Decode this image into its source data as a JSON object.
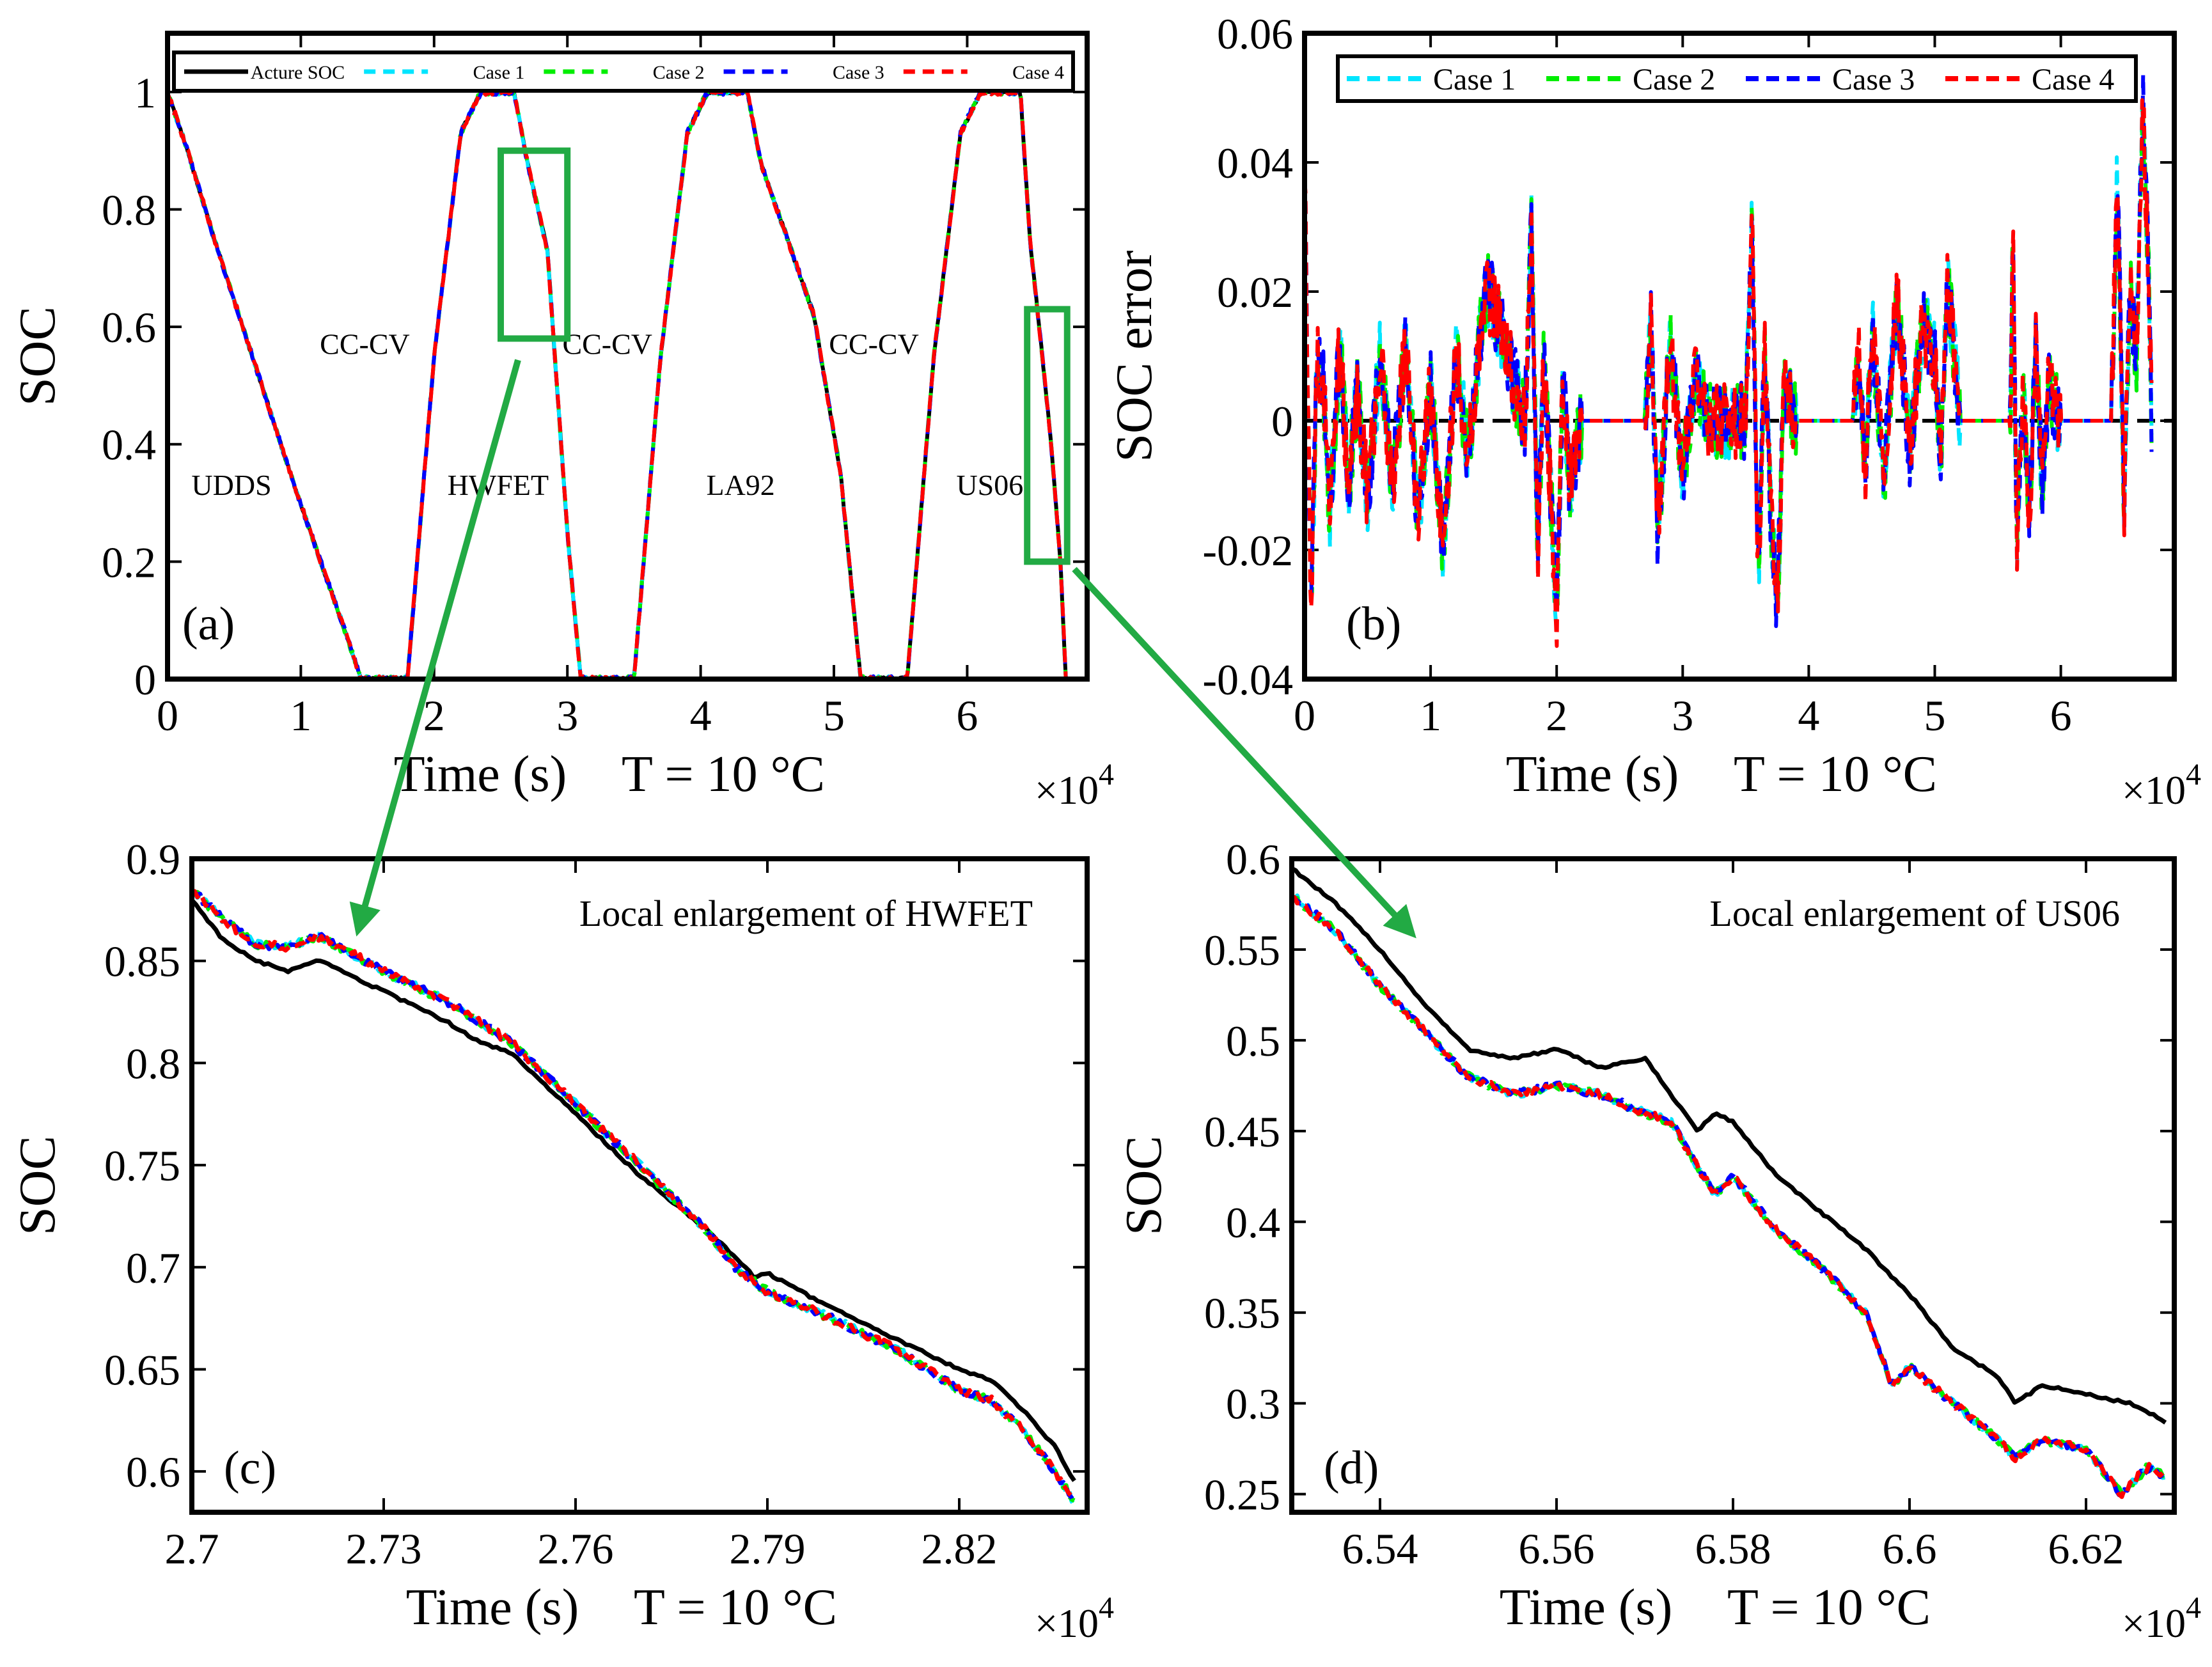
{
  "figure": {
    "x_multiplier": {
      "base": "×10",
      "exp": "4"
    },
    "temperature_text": "T = 10 °C",
    "time_label": "Time (s)"
  },
  "colors": {
    "actual": "#000000",
    "case1": "#00e5ff",
    "case2": "#00ee00",
    "case3": "#0000ff",
    "case4": "#ff0000",
    "highlight": "#22aa44"
  },
  "chart_data": [
    {
      "id": "a",
      "type": "line",
      "panel_label": "(a)",
      "xlabel": "Time (s)",
      "temperature": "T = 10 °C",
      "ylabel": "SOC",
      "xlim": [
        0,
        6.9
      ],
      "ylim": [
        0,
        1.1
      ],
      "x_scale": "×10^4",
      "xticks": [
        0,
        1,
        2,
        3,
        4,
        5,
        6
      ],
      "yticks": [
        0,
        0.2,
        0.4,
        0.6,
        0.8,
        1
      ],
      "ytick_labels": [
        "0",
        "0.2",
        "0.4",
        "0.6",
        "0.8",
        "1"
      ],
      "legend": [
        "Acture SOC",
        "Case 1",
        "Case 2",
        "Case 3",
        "Case 4"
      ],
      "legend_position": "top",
      "annotations": [
        {
          "text": "UDDS",
          "x": 0.48,
          "y": 0.33
        },
        {
          "text": "CC-CV",
          "x": 1.48,
          "y": 0.57
        },
        {
          "text": "HWFET",
          "x": 2.48,
          "y": 0.33
        },
        {
          "text": "CC-CV",
          "x": 3.3,
          "y": 0.57
        },
        {
          "text": "LA92",
          "x": 4.3,
          "y": 0.33
        },
        {
          "text": "CC-CV",
          "x": 5.3,
          "y": 0.57
        },
        {
          "text": "US06",
          "x": 6.17,
          "y": 0.33
        }
      ],
      "zoom_boxes": [
        {
          "x0": 2.5,
          "x1": 3.0,
          "y0": 0.58,
          "y1": 0.9
        },
        {
          "x0": 6.45,
          "x1": 6.75,
          "y0": 0.2,
          "y1": 0.63
        }
      ],
      "series": [
        {
          "name": "Acture SOC",
          "x": [
            0,
            0.15,
            0.35,
            0.55,
            0.75,
            0.95,
            1.15,
            1.35,
            1.45,
            1.8,
            2.0,
            2.2,
            2.35,
            2.6,
            2.7,
            2.85,
            3.0,
            3.1,
            3.5,
            3.7,
            3.9,
            4.05,
            4.35,
            4.45,
            4.65,
            4.85,
            5.05,
            5.2,
            5.55,
            5.75,
            5.95,
            6.1,
            6.4,
            6.47,
            6.55,
            6.63,
            6.7,
            6.74
          ],
          "y": [
            1,
            0.9,
            0.75,
            0.61,
            0.47,
            0.33,
            0.2,
            0.07,
            0,
            0,
            0.55,
            0.93,
            1,
            1,
            0.88,
            0.73,
            0.25,
            0,
            0,
            0.55,
            0.93,
            1,
            1,
            0.88,
            0.75,
            0.62,
            0.35,
            0,
            0,
            0.55,
            0.93,
            1,
            1,
            0.75,
            0.58,
            0.4,
            0.2,
            0
          ]
        }
      ]
    },
    {
      "id": "b",
      "type": "line",
      "panel_label": "(b)",
      "xlabel": "Time (s)",
      "temperature": "T = 10 °C",
      "ylabel": "SOC error",
      "xlim": [
        0,
        6.9
      ],
      "ylim": [
        -0.04,
        0.06
      ],
      "x_scale": "×10^4",
      "xticks": [
        0,
        1,
        2,
        3,
        4,
        5,
        6
      ],
      "yticks": [
        -0.04,
        -0.02,
        0,
        0.02,
        0.04,
        0.06
      ],
      "ytick_labels": [
        "-0.04",
        "-0.02",
        "0",
        "0.02",
        "0.04",
        "0.06"
      ],
      "legend": [
        "Case 1",
        "Case 2",
        "Case 3",
        "Case 4"
      ],
      "legend_position": "top",
      "series": [
        {
          "name": "Case 4",
          "x": [
            0,
            0.05,
            0.1,
            0.15,
            0.2,
            0.28,
            0.35,
            0.42,
            0.5,
            0.6,
            0.7,
            0.8,
            0.9,
            1.0,
            1.1,
            1.2,
            1.3,
            1.4,
            1.45,
            1.5,
            1.75,
            1.8,
            1.85,
            1.9,
            2.0,
            2.05,
            2.1,
            2.2,
            2.7,
            2.75,
            2.8,
            2.9,
            3.0,
            3.1,
            3.2,
            3.5,
            3.55,
            3.6,
            3.65,
            3.7,
            3.75,
            3.8,
            3.9,
            4.35,
            4.4,
            4.45,
            4.5,
            4.6,
            4.7,
            4.8,
            4.9,
            5.0,
            5.05,
            5.1,
            5.2,
            5.6,
            5.62,
            5.65,
            5.7,
            5.75,
            5.8,
            5.85,
            5.9,
            6.0,
            6.4,
            6.45,
            6.5,
            6.55,
            6.6,
            6.65,
            6.7,
            6.72
          ],
          "y": [
            0.04,
            -0.03,
            0.01,
            0.005,
            -0.015,
            0.012,
            -0.01,
            0.005,
            -0.012,
            0.01,
            -0.01,
            0.012,
            -0.015,
            0.005,
            -0.02,
            0.01,
            -0.005,
            0.015,
            0.02,
            0.018,
            0.0,
            0.03,
            -0.02,
            0.01,
            -0.03,
            0.008,
            -0.01,
            0.0,
            0.0,
            0.015,
            -0.018,
            0.012,
            -0.008,
            0.008,
            0.0,
            0.0,
            0.03,
            -0.025,
            0.01,
            -0.015,
            -0.03,
            0.005,
            0.0,
            0.0,
            0.01,
            -0.01,
            0.015,
            -0.008,
            0.02,
            -0.005,
            0.015,
            0.01,
            -0.006,
            0.022,
            0.0,
            0.0,
            0.028,
            -0.02,
            0.005,
            -0.015,
            0.012,
            -0.01,
            0.005,
            0.0,
            0.0,
            0.04,
            -0.015,
            0.02,
            0.01,
            0.05,
            0.02,
            0.0
          ]
        }
      ]
    },
    {
      "id": "c",
      "type": "line",
      "panel_label": "(c)",
      "title": "Local enlargement of HWFET",
      "xlabel": "Time (s)",
      "temperature": "T = 10 °C",
      "ylabel": "SOC",
      "xlim": [
        2.7,
        2.84
      ],
      "ylim": [
        0.58,
        0.9
      ],
      "x_scale": "×10^4",
      "xticks": [
        2.7,
        2.73,
        2.76,
        2.79,
        2.82
      ],
      "xtick_labels": [
        "2.7",
        "2.73",
        "2.76",
        "2.79",
        "2.82"
      ],
      "yticks": [
        0.6,
        0.65,
        0.7,
        0.75,
        0.8,
        0.85,
        0.9
      ],
      "ytick_labels": [
        "0.6",
        "0.65",
        "0.7",
        "0.75",
        "0.8",
        "0.85",
        "0.9"
      ],
      "series": [
        {
          "name": "Acture SOC",
          "x": [
            2.7,
            2.705,
            2.71,
            2.715,
            2.72,
            2.73,
            2.74,
            2.745,
            2.75,
            2.76,
            2.77,
            2.78,
            2.785,
            2.788,
            2.79,
            2.8,
            2.81,
            2.82,
            2.825,
            2.83,
            2.835,
            2.838
          ],
          "y": [
            0.88,
            0.86,
            0.85,
            0.845,
            0.85,
            0.835,
            0.82,
            0.81,
            0.805,
            0.775,
            0.745,
            0.72,
            0.705,
            0.695,
            0.697,
            0.68,
            0.665,
            0.65,
            0.645,
            0.63,
            0.612,
            0.595
          ]
        },
        {
          "name": "Case 4",
          "x": [
            2.7,
            2.705,
            2.71,
            2.715,
            2.72,
            2.73,
            2.74,
            2.745,
            2.75,
            2.76,
            2.77,
            2.78,
            2.785,
            2.79,
            2.8,
            2.81,
            2.82,
            2.825,
            2.83,
            2.835,
            2.838
          ],
          "y": [
            0.885,
            0.87,
            0.858,
            0.857,
            0.862,
            0.845,
            0.83,
            0.82,
            0.81,
            0.78,
            0.75,
            0.72,
            0.7,
            0.688,
            0.675,
            0.66,
            0.64,
            0.635,
            0.62,
            0.6,
            0.585
          ]
        }
      ]
    },
    {
      "id": "d",
      "type": "line",
      "panel_label": "(d)",
      "title": "Local enlargement of US06",
      "xlabel": "Time (s)",
      "temperature": "T = 10 °C",
      "ylabel": "SOC",
      "xlim": [
        6.53,
        6.63
      ],
      "ylim": [
        0.24,
        0.6
      ],
      "x_scale": "×10^4",
      "xticks": [
        6.54,
        6.56,
        6.58,
        6.6,
        6.62
      ],
      "xtick_labels": [
        "6.54",
        "6.56",
        "6.58",
        "6.6",
        "6.62"
      ],
      "yticks": [
        0.25,
        0.3,
        0.35,
        0.4,
        0.45,
        0.5,
        0.55,
        0.6
      ],
      "ytick_labels": [
        "0.25",
        "0.3",
        "0.35",
        "0.4",
        "0.45",
        "0.5",
        "0.55",
        "0.6"
      ],
      "series": [
        {
          "name": "Acture SOC",
          "x": [
            6.53,
            6.535,
            6.54,
            6.545,
            6.55,
            6.555,
            6.56,
            6.565,
            6.57,
            6.573,
            6.576,
            6.578,
            6.58,
            6.585,
            6.59,
            6.595,
            6.6,
            6.605,
            6.61,
            6.612,
            6.615,
            6.62,
            6.625,
            6.629
          ],
          "y": [
            0.595,
            0.575,
            0.55,
            0.52,
            0.495,
            0.49,
            0.495,
            0.485,
            0.49,
            0.47,
            0.45,
            0.46,
            0.455,
            0.425,
            0.405,
            0.385,
            0.36,
            0.33,
            0.315,
            0.3,
            0.31,
            0.305,
            0.3,
            0.29
          ]
        },
        {
          "name": "Case 4",
          "x": [
            6.53,
            6.535,
            6.54,
            6.545,
            6.55,
            6.555,
            6.56,
            6.565,
            6.57,
            6.573,
            6.576,
            6.578,
            6.58,
            6.585,
            6.59,
            6.595,
            6.598,
            6.6,
            6.605,
            6.61,
            6.612,
            6.615,
            6.62,
            6.624,
            6.627,
            6.629
          ],
          "y": [
            0.58,
            0.56,
            0.53,
            0.505,
            0.48,
            0.47,
            0.475,
            0.47,
            0.46,
            0.455,
            0.43,
            0.415,
            0.425,
            0.395,
            0.375,
            0.35,
            0.31,
            0.32,
            0.3,
            0.28,
            0.27,
            0.28,
            0.275,
            0.25,
            0.265,
            0.26
          ]
        }
      ]
    }
  ]
}
